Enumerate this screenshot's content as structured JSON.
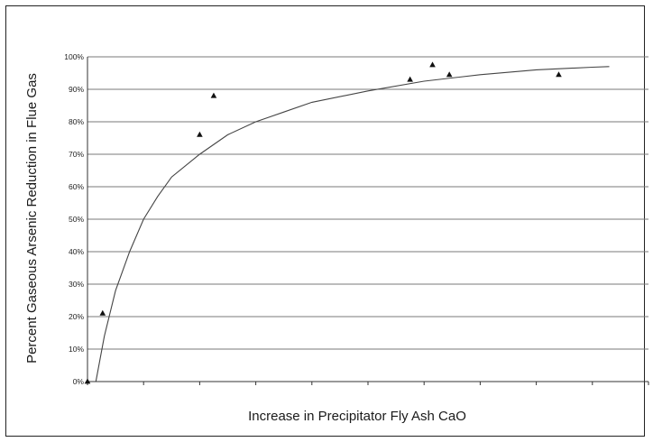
{
  "chart_data": {
    "type": "scatter",
    "title": "",
    "xlabel": "Increase in Precipitator Fly Ash CaO",
    "ylabel": "Percent Gaseous Arsenic Reduction in Flue Gas",
    "xlim": [
      0,
      10
    ],
    "ylim": [
      0,
      100
    ],
    "x_tick_count": 10,
    "y_ticks": [
      "0%",
      "10%",
      "20%",
      "30%",
      "40%",
      "50%",
      "60%",
      "70%",
      "80%",
      "90%",
      "100%"
    ],
    "grid": "horizontal",
    "legend": "none",
    "points": [
      {
        "x": 0.0,
        "y": 0
      },
      {
        "x": 0.27,
        "y": 21
      },
      {
        "x": 2.0,
        "y": 76
      },
      {
        "x": 2.25,
        "y": 88
      },
      {
        "x": 5.75,
        "y": 93
      },
      {
        "x": 6.15,
        "y": 97.5
      },
      {
        "x": 6.45,
        "y": 94.5
      },
      {
        "x": 8.4,
        "y": 94.5
      }
    ],
    "trendline": [
      {
        "x": 0.15,
        "y": 0
      },
      {
        "x": 0.3,
        "y": 14
      },
      {
        "x": 0.5,
        "y": 28
      },
      {
        "x": 0.75,
        "y": 40
      },
      {
        "x": 1.0,
        "y": 50
      },
      {
        "x": 1.25,
        "y": 57
      },
      {
        "x": 1.5,
        "y": 63
      },
      {
        "x": 2.0,
        "y": 70
      },
      {
        "x": 2.5,
        "y": 76
      },
      {
        "x": 3.0,
        "y": 80
      },
      {
        "x": 3.5,
        "y": 83
      },
      {
        "x": 4.0,
        "y": 86
      },
      {
        "x": 5.0,
        "y": 89.5
      },
      {
        "x": 6.0,
        "y": 92.5
      },
      {
        "x": 7.0,
        "y": 94.5
      },
      {
        "x": 8.0,
        "y": 96
      },
      {
        "x": 9.0,
        "y": 96.8
      },
      {
        "x": 9.3,
        "y": 97
      }
    ],
    "colors": {
      "marker": "#111111",
      "line": "#444444",
      "grid": "#7a7a7a"
    }
  }
}
